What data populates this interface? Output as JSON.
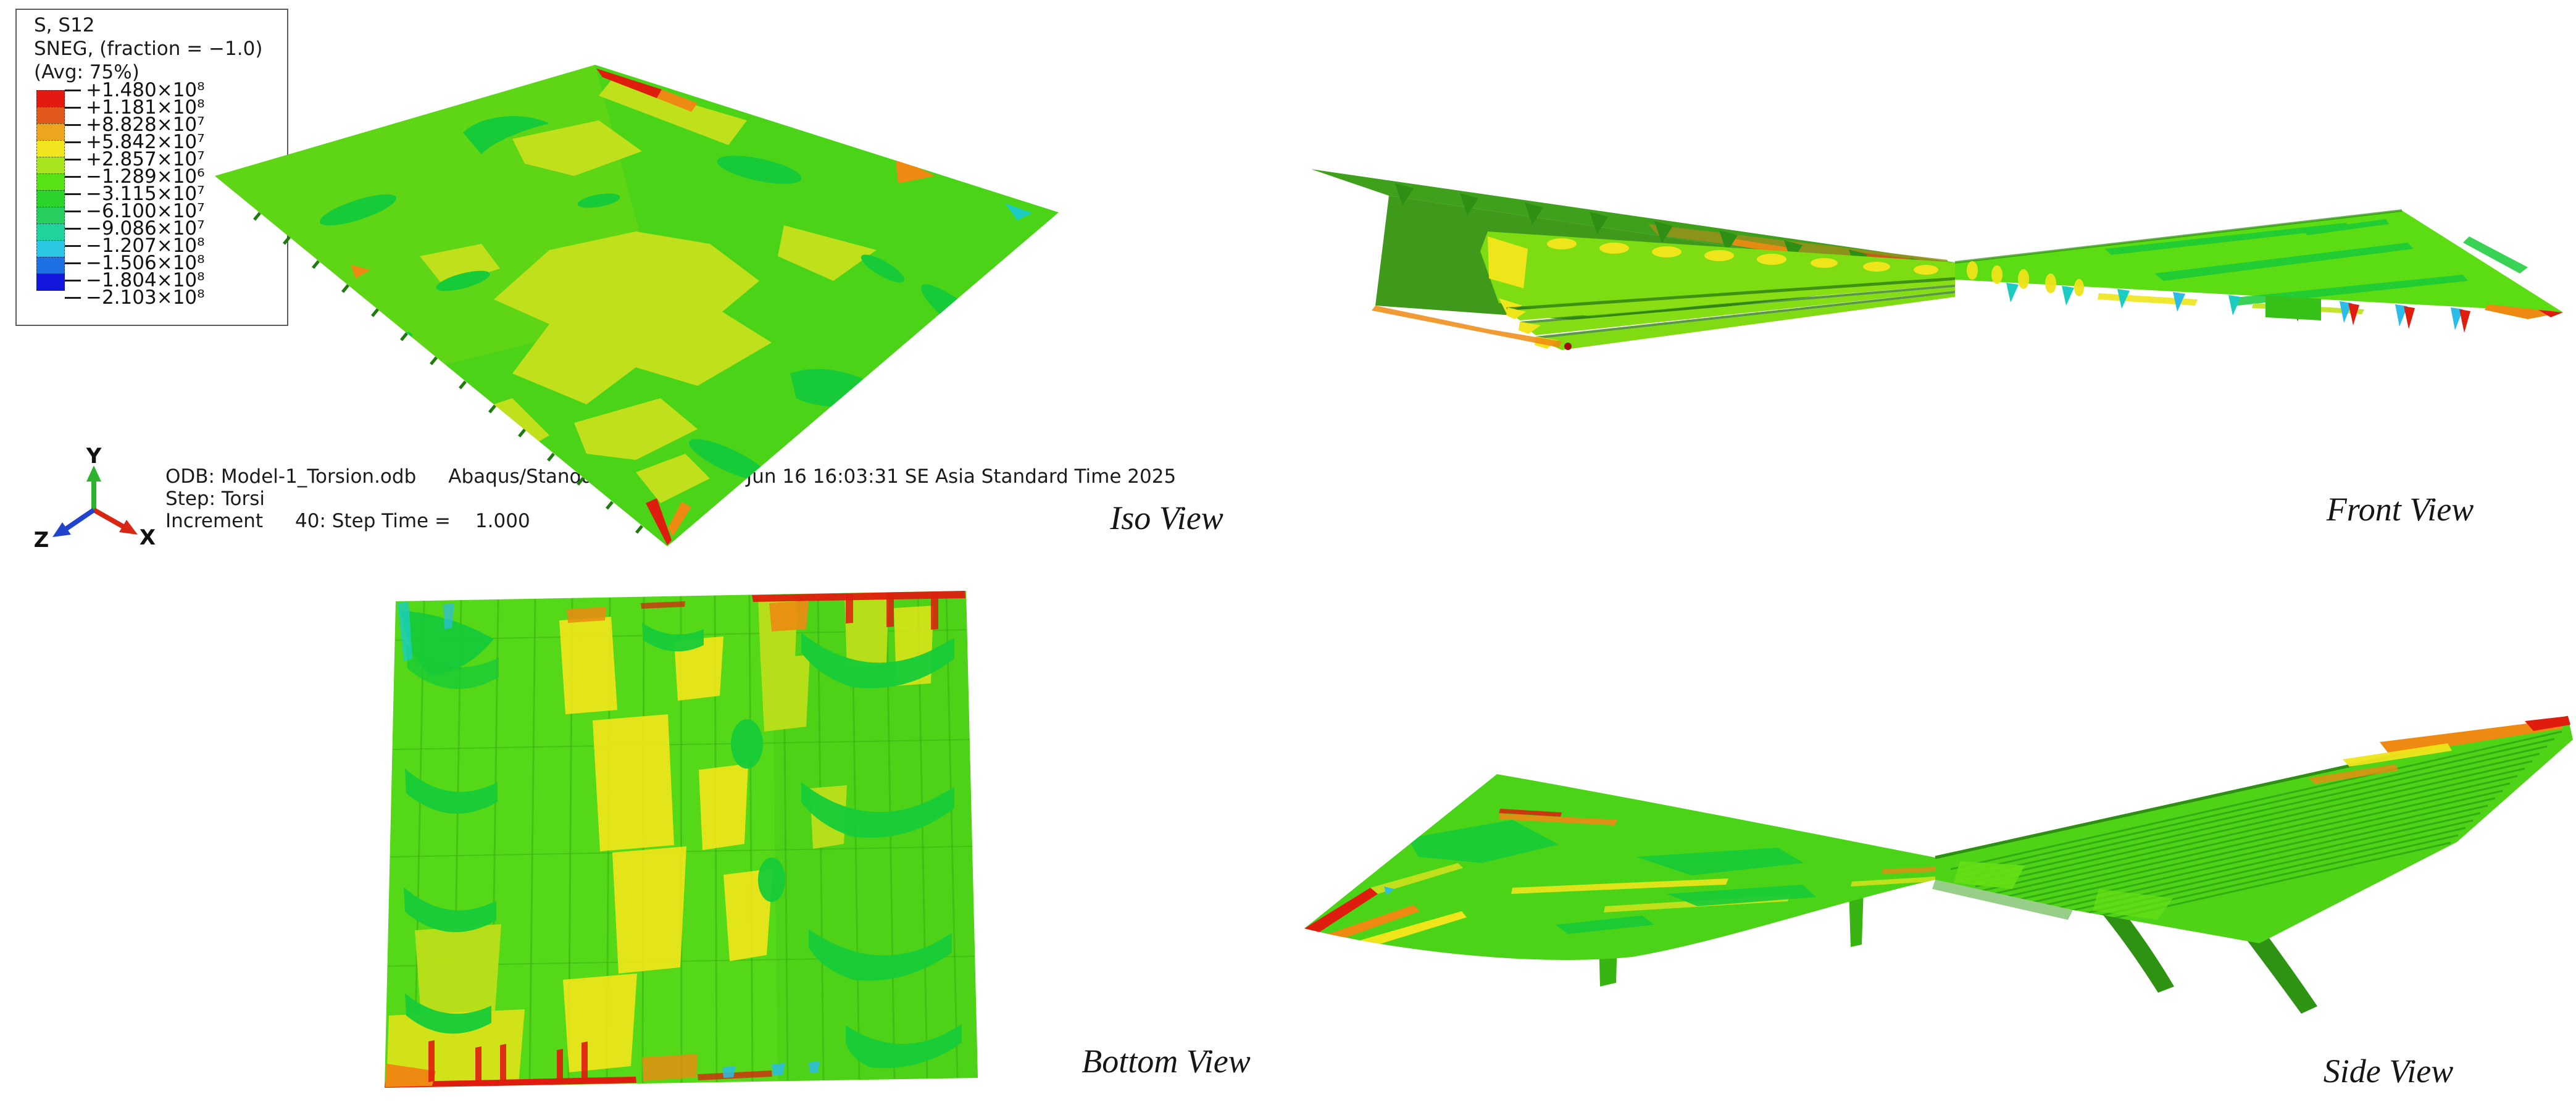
{
  "window": {
    "background": "#FFFFFF"
  },
  "legend": {
    "field_lines": [
      "S, S12",
      "SNEG, (fraction = −1.0)",
      "(Avg: 75%)"
    ],
    "bands": [
      "#E31A12",
      "#E3591B",
      "#EDA41F",
      "#F0E51F",
      "#A9E51E",
      "#57E217",
      "#2BD42B",
      "#26CF5D",
      "#20D29C",
      "#2AC6E3",
      "#1E71E3",
      "#1317DC"
    ],
    "tick_labels": [
      "+1.480×10⁸",
      "+1.181×10⁸",
      "+8.828×10⁷",
      "+5.842×10⁷",
      "+2.857×10⁷",
      "−1.289×10⁶",
      "−3.115×10⁷",
      "−6.100×10⁷",
      "−9.086×10⁷",
      "−1.207×10⁸",
      "−1.506×10⁸",
      "−1.804×10⁸",
      "−2.103×10⁸"
    ]
  },
  "triad": {
    "y_label": "Y",
    "x_label": "X",
    "z_label": "Z",
    "y_color": "#2DB32D",
    "x_color": "#D82612",
    "z_color": "#2244CC"
  },
  "status": {
    "odb": "ODB: Model-1_Torsion.odb",
    "solver": "Abaqus/Standard 2020",
    "datetime": "Mon Jun 16 16:03:31 SE Asia Standard Time 2025",
    "step": "Step: Torsi",
    "increment_label": "Increment",
    "increment_text": "40: Step Time =",
    "step_time": "1.000"
  },
  "views": {
    "iso": {
      "label": "Iso View"
    },
    "front": {
      "label": "Front View"
    },
    "bottom": {
      "label": "Bottom View"
    },
    "side": {
      "label": "Side View"
    }
  },
  "palette": {
    "base": "#4BD318",
    "base2": "#55D818",
    "bright": "#7EDC12",
    "wing": "#5CDC12",
    "yg": "#BFE01B",
    "yellow": "#EEE51A",
    "dg": "#17CB38",
    "deep": "#3FA01C",
    "rib": "#2E8F15",
    "olive": "#99901B",
    "orange": "#EE8A12",
    "red": "#DE1D0E",
    "teal": "#1ACDC0",
    "cyan": "#2BBCE8",
    "support": "#38B513",
    "arm": "#2E9213"
  }
}
